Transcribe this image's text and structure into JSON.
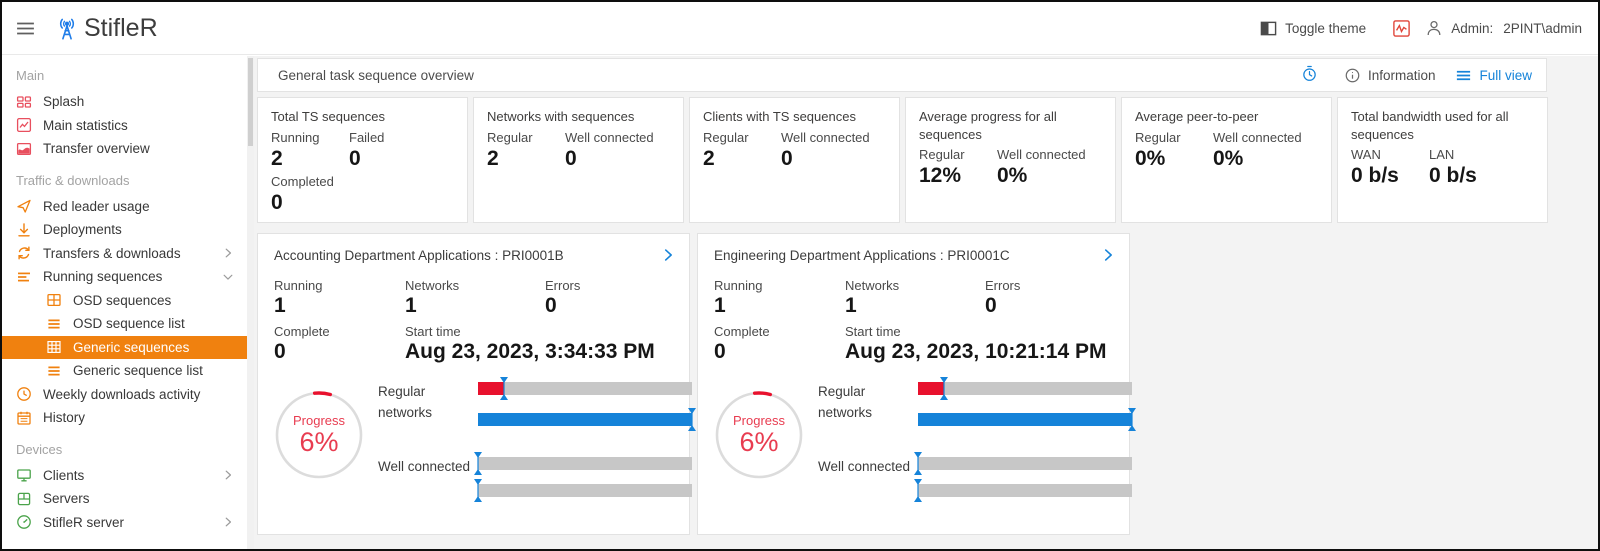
{
  "header": {
    "app_title": "StifleR",
    "toggle_theme_label": "Toggle theme",
    "admin_label": "Admin:",
    "admin_user": "2PINT\\admin"
  },
  "sidebar": {
    "sections": [
      {
        "label": "Main",
        "items": [
          {
            "label": "Splash",
            "icon": "splash-icon",
            "color": "red"
          },
          {
            "label": "Main statistics",
            "icon": "statistics-icon",
            "color": "red"
          },
          {
            "label": "Transfer overview",
            "icon": "transfer-overview-icon",
            "color": "red"
          }
        ]
      },
      {
        "label": "Traffic & downloads",
        "items": [
          {
            "label": "Red leader usage",
            "icon": "red-leader-icon",
            "color": "orange"
          },
          {
            "label": "Deployments",
            "icon": "deployments-icon",
            "color": "orange"
          },
          {
            "label": "Transfers & downloads",
            "icon": "sync-icon",
            "color": "orange",
            "chevron": "right"
          },
          {
            "label": "Running sequences",
            "icon": "list-lines-icon",
            "color": "orange",
            "chevron": "down"
          },
          {
            "label": "OSD sequences",
            "icon": "window-icon",
            "color": "orange",
            "indent": true
          },
          {
            "label": "OSD sequence list",
            "icon": "lines-icon",
            "color": "orange",
            "indent": true
          },
          {
            "label": "Generic sequences",
            "icon": "grid-icon",
            "color": "orange",
            "indent": true,
            "selected": true
          },
          {
            "label": "Generic sequence list",
            "icon": "lines-icon",
            "color": "orange",
            "indent": true
          },
          {
            "label": "Weekly downloads activity",
            "icon": "clock-icon",
            "color": "orange"
          },
          {
            "label": "History",
            "icon": "calendar-icon",
            "color": "orange"
          }
        ]
      },
      {
        "label": "Devices",
        "items": [
          {
            "label": "Clients",
            "icon": "monitor-icon",
            "color": "green",
            "chevron": "right"
          },
          {
            "label": "Servers",
            "icon": "server-icon",
            "color": "green"
          },
          {
            "label": "StifleR server",
            "icon": "gauge-icon",
            "color": "green",
            "chevron": "right"
          }
        ]
      }
    ]
  },
  "toolbar": {
    "title": "General task sequence overview",
    "information_label": "Information",
    "full_view_label": "Full view"
  },
  "stat_cards": [
    {
      "title": "Total TS sequences",
      "metrics": [
        {
          "label": "Running",
          "value": "2"
        },
        {
          "label": "Failed",
          "value": "0"
        },
        {
          "label": "Completed",
          "value": "0"
        }
      ]
    },
    {
      "title": "Networks with sequences",
      "metrics": [
        {
          "label": "Regular",
          "value": "2"
        },
        {
          "label": "Well connected",
          "value": "0"
        }
      ]
    },
    {
      "title": "Clients with TS sequences",
      "metrics": [
        {
          "label": "Regular",
          "value": "2"
        },
        {
          "label": "Well connected",
          "value": "0"
        }
      ]
    },
    {
      "title": "Average progress for all sequences",
      "metrics": [
        {
          "label": "Regular",
          "value": "12%"
        },
        {
          "label": "Well connected",
          "value": "0%"
        }
      ]
    },
    {
      "title": "Average peer-to-peer",
      "metrics": [
        {
          "label": "Regular",
          "value": "0%"
        },
        {
          "label": "Well connected",
          "value": "0%"
        }
      ]
    },
    {
      "title": "Total bandwidth used for all sequences",
      "metrics": [
        {
          "label": "WAN",
          "value": "0 b/s"
        },
        {
          "label": "LAN",
          "value": "0 b/s"
        }
      ]
    }
  ],
  "sequence_cards": [
    {
      "title": "Accounting Department Applications : PRI0001B",
      "running_label": "Running",
      "running": "1",
      "networks_label": "Networks",
      "networks": "1",
      "errors_label": "Errors",
      "errors": "0",
      "complete_label": "Complete",
      "complete": "0",
      "start_time_label": "Start time",
      "start_time": "Aug 23, 2023, 3:34:33 PM",
      "progress_label": "Progress",
      "progress": "6%",
      "regular_label": "Regular networks",
      "well_label": "Well connected",
      "bars": [
        {
          "group": "regular",
          "fill_pct": 12,
          "fill_color": "#e8112d",
          "marker_pct": 12
        },
        {
          "group": "regular",
          "fill_pct": 100,
          "fill_color": "#1583d9",
          "marker_pct": 100
        },
        {
          "group": "well",
          "fill_pct": 0,
          "fill_color": "#c7c7c7",
          "marker_pct": 0
        },
        {
          "group": "well",
          "fill_pct": 0,
          "fill_color": "#c7c7c7",
          "marker_pct": 0
        }
      ]
    },
    {
      "title": "Engineering Department Applications : PRI0001C",
      "running_label": "Running",
      "running": "1",
      "networks_label": "Networks",
      "networks": "1",
      "errors_label": "Errors",
      "errors": "0",
      "complete_label": "Complete",
      "complete": "0",
      "start_time_label": "Start time",
      "start_time": "Aug 23, 2023, 10:21:14 PM",
      "progress_label": "Progress",
      "progress": "6%",
      "regular_label": "Regular networks",
      "well_label": "Well connected",
      "bars": [
        {
          "group": "regular",
          "fill_pct": 12,
          "fill_color": "#e8112d",
          "marker_pct": 12
        },
        {
          "group": "regular",
          "fill_pct": 100,
          "fill_color": "#1583d9",
          "marker_pct": 100
        },
        {
          "group": "well",
          "fill_pct": 0,
          "fill_color": "#c7c7c7",
          "marker_pct": 0
        },
        {
          "group": "well",
          "fill_pct": 0,
          "fill_color": "#c7c7c7",
          "marker_pct": 0
        }
      ]
    }
  ],
  "colors": {
    "accent_orange": "#f0810f",
    "sidebar_red": "#e84f5e",
    "sidebar_green": "#4aa34a",
    "logo_blue": "#1e7ce8",
    "link_blue": "#1583d9",
    "bar_red": "#e8112d",
    "bar_blue": "#1583d9",
    "bar_track_gray": "#c7c7c7",
    "progress_text_red": "#e83c50",
    "marker_blue": "#1583d9"
  }
}
